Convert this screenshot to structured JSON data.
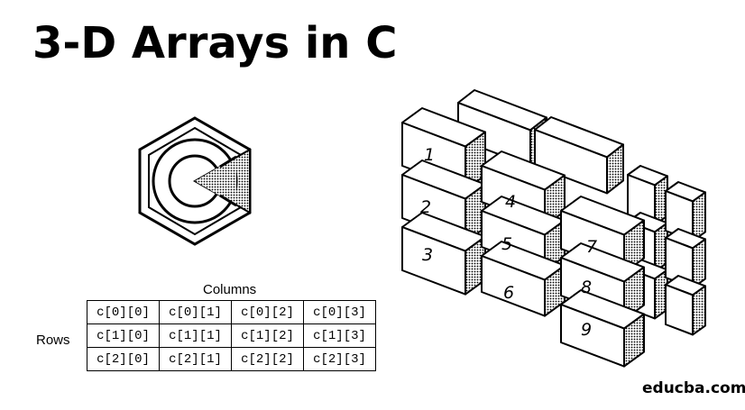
{
  "title": "3-D Arrays in C",
  "logo_icon": "c-language-logo-icon",
  "table": {
    "columns_label": "Columns",
    "rows_label": "Rows",
    "rows": [
      [
        "c[0][0]",
        "c[0][1]",
        "c[0][2]",
        "c[0][3]"
      ],
      [
        "c[1][0]",
        "c[1][1]",
        "c[1][2]",
        "c[1][3]"
      ],
      [
        "c[2][0]",
        "c[2][1]",
        "c[2][2]",
        "c[2][3]"
      ]
    ]
  },
  "cube_labels": [
    "1",
    "2",
    "3",
    "4",
    "5",
    "6",
    "7",
    "8",
    "9"
  ],
  "brand": "educba.com"
}
